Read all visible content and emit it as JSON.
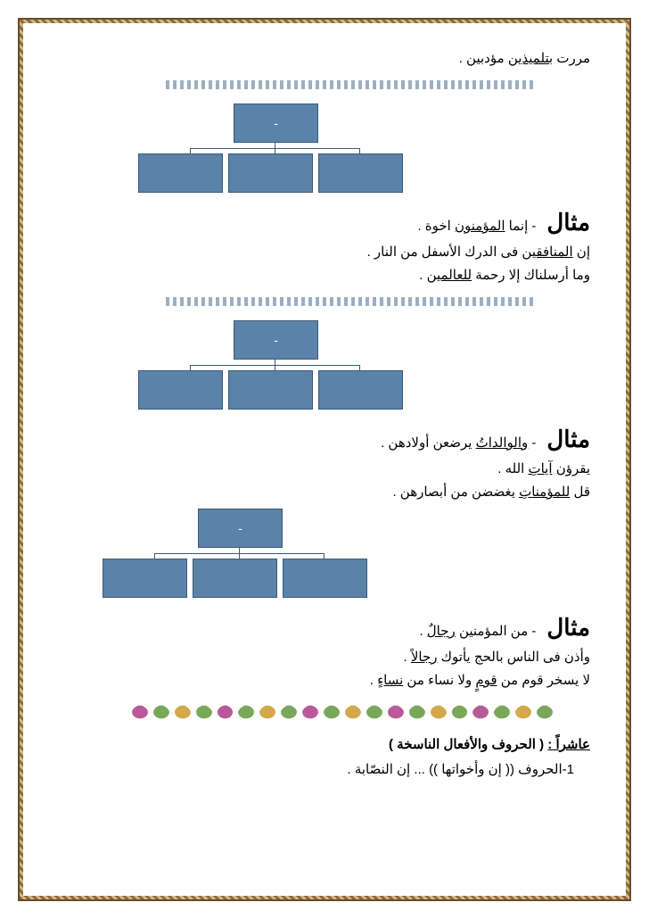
{
  "top_line": {
    "prefix": "مررت ",
    "ul": "بتلميذين",
    "suffix": " مؤدبين ."
  },
  "diagram_top_label": "-",
  "section1": {
    "mithal": "مثال",
    "ex1": {
      "prefix": "- إنما ",
      "ul": "المؤمنون",
      "suffix": " اخوة ."
    },
    "ex2": {
      "prefix": "إن ",
      "ul": "المنافقين",
      "suffix": " فى الدرك الأسفل من النار ."
    },
    "ex3": {
      "prefix": "وما أرسلناك إلا رحمة ",
      "ul": "للعالمين",
      "suffix": "  ."
    }
  },
  "section2": {
    "mithal": "مثال",
    "ex1": {
      "prefix": "- ",
      "ul": "والوالداتُ",
      "suffix": " يرضعن أولادهن ."
    },
    "ex2": {
      "prefix": "يقرؤن ",
      "ul": "آياتِ",
      "suffix": " الله ."
    },
    "ex3": {
      "prefix": "قل ",
      "ul": "للمؤمناتِ",
      "suffix": " يغضضن من أبصارهن ."
    }
  },
  "section3": {
    "mithal": "مثال",
    "ex1": {
      "prefix": "- من المؤمنين ",
      "ul": "رجالٌ",
      "suffix": "  ."
    },
    "ex2": {
      "prefix": "وأذن فى الناس بالحج يأتوك ",
      "ul": "رجالاً",
      "suffix": " ."
    },
    "ex3": {
      "prefix": "لا يسخر قوم من ",
      "ul1": "قومٍ",
      "mid": " ولا نساء من ",
      "ul2": "نساءٍ",
      "suffix": " ."
    }
  },
  "leaves": [
    "#7aa85a",
    "#d4a84a",
    "#7aa85a",
    "#b85a9a",
    "#7aa85a",
    "#d4a84a",
    "#7aa85a",
    "#b85a9a",
    "#7aa85a",
    "#d4a84a",
    "#7aa85a",
    "#b85a9a",
    "#7aa85a",
    "#d4a84a",
    "#7aa85a",
    "#b85a9a",
    "#7aa85a",
    "#d4a84a",
    "#7aa85a",
    "#b85a9a"
  ],
  "tenth": {
    "label": "عاشراً :",
    "rest": " ( الحروف والأفعال الناسخة )"
  },
  "sub1": "1-الحروف  ((  إن  وأخواتها  )) ... إن النصّابة .",
  "colors": {
    "box_fill": "#5b82a8",
    "box_border": "#3a5a78"
  }
}
